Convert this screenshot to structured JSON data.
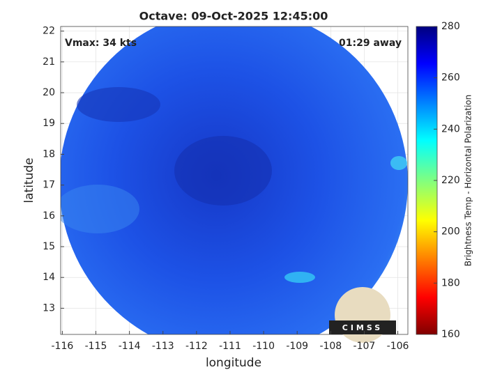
{
  "chart_data": {
    "type": "map",
    "title": "Octave: 09-Oct-2025 12:45:00",
    "x_label": "longitude",
    "y_label": "latitude",
    "annotations": [
      "Vmax: 34 kts",
      "01:29 away"
    ],
    "xlim": [
      -116.05,
      -105.7
    ],
    "xticks": [
      -116,
      -115,
      -114,
      -113,
      -112,
      -111,
      -110,
      -109,
      -108,
      -107,
      -106
    ],
    "ylim": [
      12.15,
      22.15
    ],
    "yticks": [
      13,
      14,
      15,
      16,
      17,
      18,
      19,
      20,
      21,
      22
    ],
    "grid": true,
    "colorbar": {
      "label": "Brightness Temp - Horizontal Polarization",
      "lim": [
        160,
        280
      ],
      "ticks": [
        160,
        180,
        200,
        220,
        240,
        260,
        280
      ]
    },
    "logo": "CIMSS"
  }
}
